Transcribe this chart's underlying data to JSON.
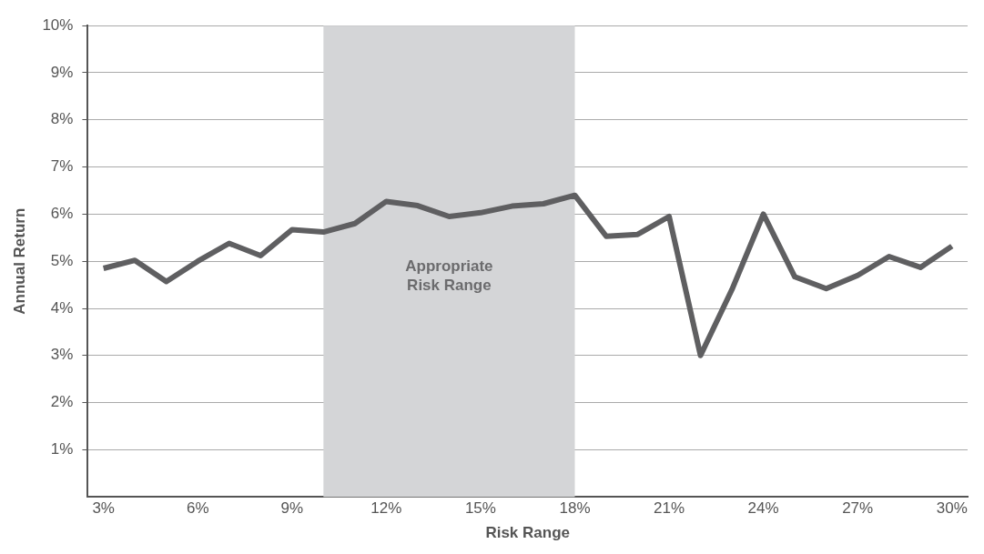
{
  "chart_data": {
    "type": "line",
    "xlabel": "Risk Range",
    "ylabel": "Annual Return",
    "x": [
      3,
      4,
      5,
      6,
      7,
      8,
      9,
      10,
      11,
      12,
      13,
      14,
      15,
      16,
      17,
      18,
      19,
      20,
      21,
      22,
      23,
      24,
      25,
      26,
      27,
      28,
      29,
      30
    ],
    "series": [
      {
        "color": "#5f5f61",
        "values": [
          4.85,
          5.02,
          4.57,
          5.0,
          5.38,
          5.12,
          5.67,
          5.62,
          5.8,
          6.27,
          6.18,
          5.95,
          6.03,
          6.17,
          6.22,
          6.4,
          5.53,
          5.57,
          5.95,
          3.0,
          4.4,
          6.0,
          4.67,
          4.42,
          4.7,
          5.1,
          4.87,
          5.32
        ]
      }
    ],
    "xlim": [
      2.5,
      30.5
    ],
    "ylim": [
      0,
      10
    ],
    "xticks": [
      {
        "value": 3,
        "label": "3%"
      },
      {
        "value": 6,
        "label": "6%"
      },
      {
        "value": 9,
        "label": "9%"
      },
      {
        "value": 12,
        "label": "12%"
      },
      {
        "value": 15,
        "label": "15%"
      },
      {
        "value": 18,
        "label": "18%"
      },
      {
        "value": 21,
        "label": "21%"
      },
      {
        "value": 24,
        "label": "24%"
      },
      {
        "value": 27,
        "label": "27%"
      },
      {
        "value": 30,
        "label": "30%"
      }
    ],
    "yticks": [
      {
        "value": 1,
        "label": "1%"
      },
      {
        "value": 2,
        "label": "2%"
      },
      {
        "value": 3,
        "label": "3%"
      },
      {
        "value": 4,
        "label": "4%"
      },
      {
        "value": 5,
        "label": "5%"
      },
      {
        "value": 6,
        "label": "6%"
      },
      {
        "value": 7,
        "label": "7%"
      },
      {
        "value": 8,
        "label": "8%"
      },
      {
        "value": 9,
        "label": "9%"
      },
      {
        "value": 10,
        "label": "10%"
      }
    ],
    "bands": [
      {
        "axis": "x",
        "from": 10,
        "to": 18,
        "label": "Appropriate Risk Range",
        "color": "#d4d5d7"
      }
    ],
    "grid": "y",
    "legend": false,
    "marker": "none",
    "line_style": "solid"
  }
}
